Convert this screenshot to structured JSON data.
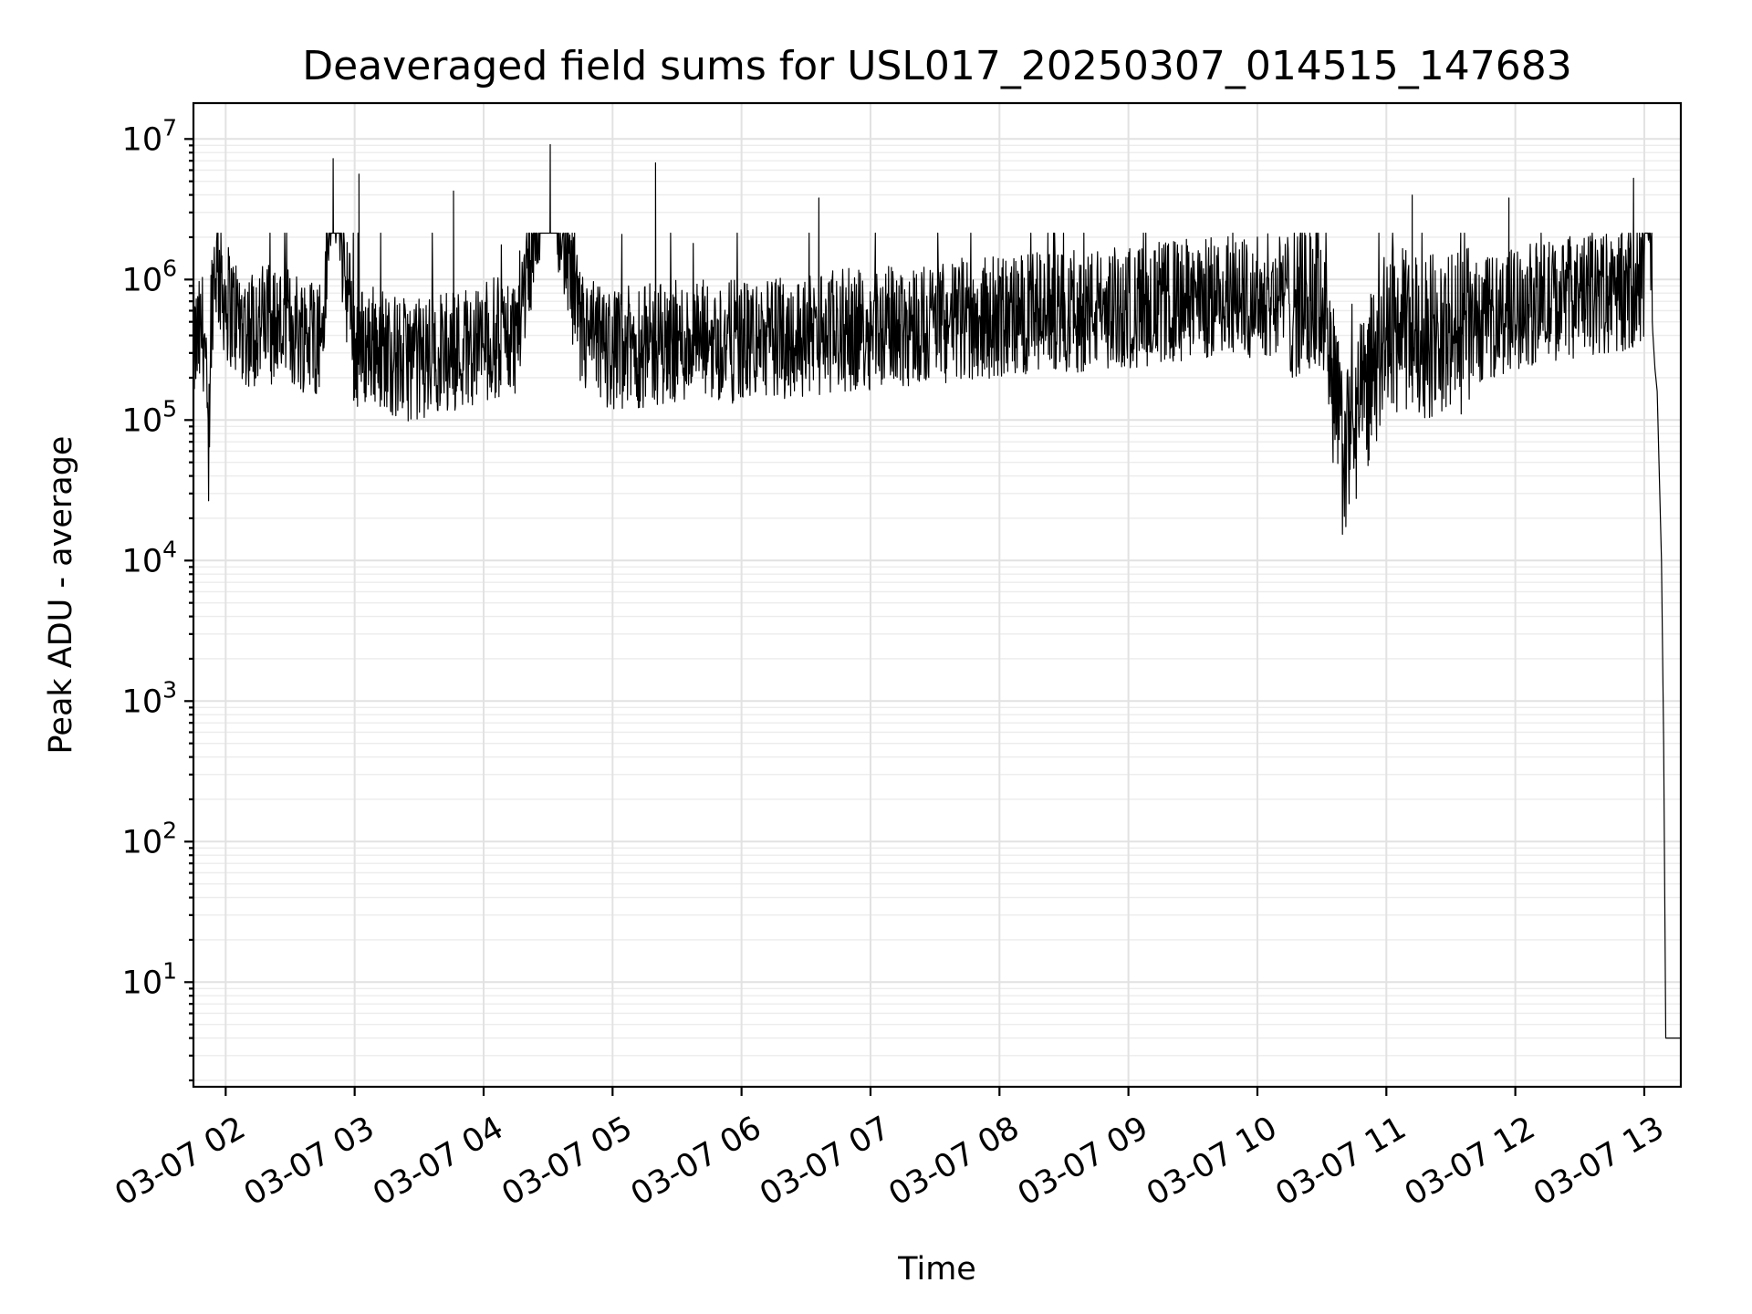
{
  "chart_data": {
    "type": "line",
    "title": "Deaveraged field sums for USL017_20250307_014515_147683",
    "xlabel": "Time",
    "ylabel": "Peak ADU - average",
    "yscale": "log",
    "ylim": [
      1.8,
      18000000
    ],
    "xlim": [
      "2025-03-07 01:45",
      "2025-03-07 13:17"
    ],
    "grid": "major and minor",
    "x_tick_labels": [
      "03-07 02",
      "03-07 03",
      "03-07 04",
      "03-07 05",
      "03-07 06",
      "03-07 07",
      "03-07 08",
      "03-07 09",
      "03-07 10",
      "03-07 11",
      "03-07 12",
      "03-07 13"
    ],
    "y_ticks": [
      {
        "value": 10,
        "base": "10",
        "exp": "1"
      },
      {
        "value": 100,
        "base": "10",
        "exp": "2"
      },
      {
        "value": 1000,
        "base": "10",
        "exp": "3"
      },
      {
        "value": 10000,
        "base": "10",
        "exp": "4"
      },
      {
        "value": 100000,
        "base": "10",
        "exp": "5"
      },
      {
        "value": 1000000,
        "base": "10",
        "exp": "6"
      },
      {
        "value": 10000000,
        "base": "10",
        "exp": "7"
      }
    ],
    "series": [
      {
        "color": "#000000",
        "x": [
          "2025-03-07 01:45",
          "2025-03-07 01:48",
          "2025-03-07 01:50",
          "2025-03-07 01:52",
          "2025-03-07 01:53",
          "2025-03-07 01:55",
          "2025-03-07 01:57",
          "2025-03-07 02:00",
          "2025-03-07 02:05",
          "2025-03-07 02:10",
          "2025-03-07 02:20",
          "2025-03-07 02:30",
          "2025-03-07 02:45",
          "2025-03-07 02:50",
          "2025-03-07 03:00",
          "2025-03-07 03:10",
          "2025-03-07 03:20",
          "2025-03-07 03:30",
          "2025-03-07 03:45",
          "2025-03-07 04:00",
          "2025-03-07 04:15",
          "2025-03-07 04:30",
          "2025-03-07 04:45",
          "2025-03-07 05:00",
          "2025-03-07 05:30",
          "2025-03-07 06:00",
          "2025-03-07 06:30",
          "2025-03-07 07:00",
          "2025-03-07 07:30",
          "2025-03-07 08:00",
          "2025-03-07 08:30",
          "2025-03-07 09:00",
          "2025-03-07 09:30",
          "2025-03-07 10:00",
          "2025-03-07 10:30",
          "2025-03-07 10:40",
          "2025-03-07 11:00",
          "2025-03-07 11:30",
          "2025-03-07 12:00",
          "2025-03-07 12:30",
          "2025-03-07 12:50",
          "2025-03-07 13:00",
          "2025-03-07 13:02",
          "2025-03-07 13:04",
          "2025-03-07 13:05",
          "2025-03-07 13:07",
          "2025-03-07 13:08",
          "2025-03-07 13:09",
          "2025-03-07 13:10",
          "2025-03-07 13:17"
        ],
        "y": [
          350000,
          420000,
          500000,
          50000,
          600000,
          1500000,
          1200000,
          800000,
          600000,
          500000,
          550000,
          500000,
          450000,
          7200000,
          350000,
          400000,
          300000,
          300000,
          350000,
          400000,
          450000,
          9000000,
          450000,
          350000,
          400000,
          400000,
          450000,
          500000,
          550000,
          600000,
          650000,
          700000,
          800000,
          850000,
          900000,
          60000,
          500000,
          450000,
          700000,
          850000,
          900000,
          1100000,
          3600000,
          800000,
          220000,
          160000,
          10000,
          500,
          4,
          4
        ]
      }
    ]
  }
}
